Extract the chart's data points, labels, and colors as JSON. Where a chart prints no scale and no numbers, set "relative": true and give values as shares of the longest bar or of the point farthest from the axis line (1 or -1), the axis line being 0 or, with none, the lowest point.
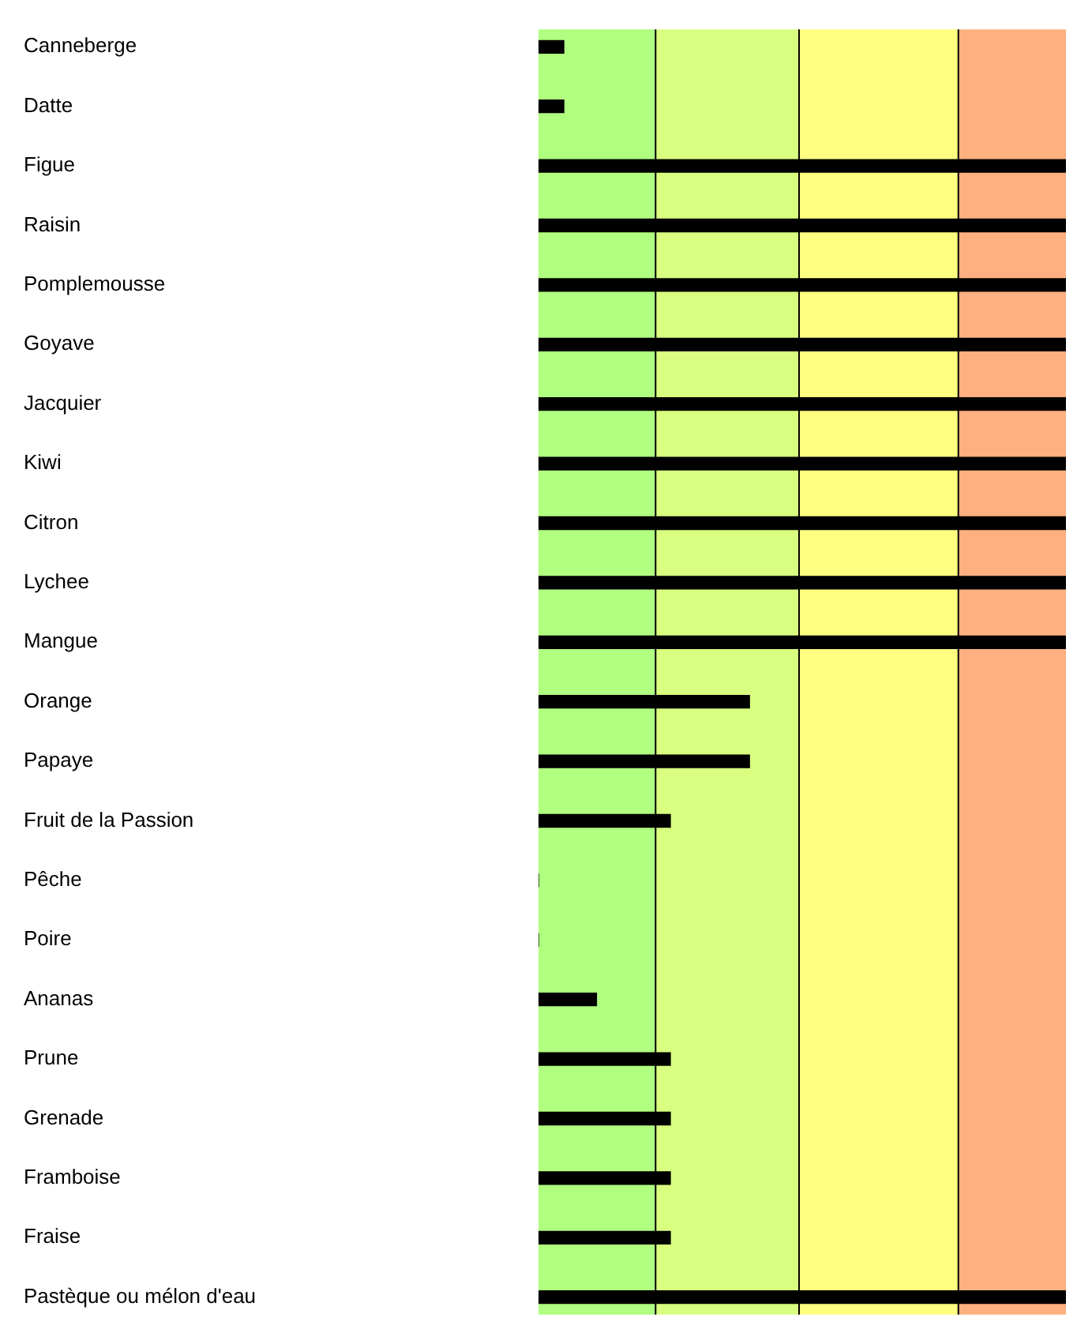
{
  "chart_data": {
    "type": "bar",
    "orientation": "horizontal",
    "relative": true,
    "categories": [
      "Canneberge",
      "Datte",
      "Figue",
      "Raisin",
      "Pomplemousse",
      "Goyave",
      "Jacquier",
      "Kiwi",
      "Citron",
      "Lychee",
      "Mangue",
      "Orange",
      "Papaye",
      "Fruit de la Passion",
      "Pêche",
      "Poire",
      "Ananas",
      "Prune",
      "Grenade",
      "Framboise",
      "Fraise",
      "Pastèque ou mélon d'eau"
    ],
    "values": [
      0.048,
      0.048,
      1,
      1,
      1,
      1,
      1,
      1,
      1,
      1,
      1,
      0.4,
      0.4,
      0.25,
      0,
      0,
      0.11,
      0.25,
      0.25,
      0.25,
      0.25,
      1
    ],
    "color": "#000000",
    "ref_lines": [
      {
        "axis": "x",
        "value": 0.222,
        "color": "#000000"
      },
      {
        "axis": "x",
        "value": 0.494,
        "color": "#000000"
      },
      {
        "axis": "x",
        "value": 0.796,
        "color": "#000000"
      }
    ],
    "bands": [
      {
        "axis": "x",
        "from": 0,
        "to": 0.222,
        "color": "#b0ff80"
      },
      {
        "axis": "x",
        "from": 0.222,
        "to": 0.494,
        "color": "#d9ff80"
      },
      {
        "axis": "x",
        "from": 0.494,
        "to": 0.796,
        "color": "#ffff80"
      },
      {
        "axis": "x",
        "from": 0.796,
        "to": 1,
        "color": "#ffb080"
      }
    ]
  }
}
